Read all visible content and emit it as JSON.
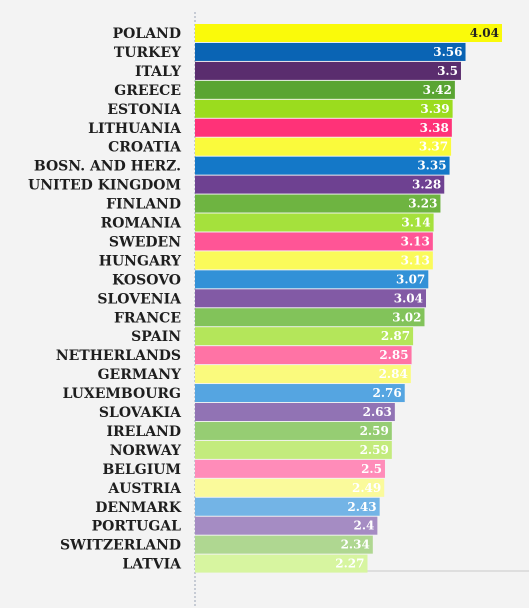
{
  "chart_data": {
    "type": "bar",
    "orientation": "horizontal",
    "categories": [
      "POLAND",
      "TURKEY",
      "ITALY",
      "GREECE",
      "ESTONIA",
      "LITHUANIA",
      "CROATIA",
      "BOSN. AND HERZ.",
      "UNITED KINGDOM",
      "FINLAND",
      "ROMANIA",
      "SWEDEN",
      "HUNGARY",
      "KOSOVO",
      "SLOVENIA",
      "FRANCE",
      "SPAIN",
      "NETHERLANDS",
      "GERMANY",
      "LUXEMBOURG",
      "SLOVAKIA",
      "IRELAND",
      "NORWAY",
      "BELGIUM",
      "AUSTRIA",
      "DENMARK",
      "PORTUGAL",
      "SWITZERLAND",
      "LATVIA"
    ],
    "values": [
      4.04,
      3.56,
      3.5,
      3.42,
      3.39,
      3.38,
      3.37,
      3.35,
      3.28,
      3.23,
      3.14,
      3.13,
      3.13,
      3.07,
      3.04,
      3.02,
      2.87,
      2.85,
      2.84,
      2.76,
      2.63,
      2.59,
      2.59,
      2.5,
      2.49,
      2.43,
      2.4,
      2.34,
      2.27
    ],
    "value_labels": [
      "4.04",
      "3.56",
      "3.5",
      "3.42",
      "3.39",
      "3.38",
      "3.37",
      "3.35",
      "3.28",
      "3.23",
      "3.14",
      "3.13",
      "3.13",
      "3.07",
      "3.04",
      "3.02",
      "2.87",
      "2.85",
      "2.84",
      "2.76",
      "2.63",
      "2.59",
      "2.59",
      "2.5",
      "2.49",
      "2.43",
      "2.4",
      "2.34",
      "2.27"
    ],
    "bar_colors": [
      "#fafa0a",
      "#0a64b4",
      "#5a2d6e",
      "#5aa532",
      "#9bdc1e",
      "#ff3278",
      "#fafa3c",
      "#1478c8",
      "#6e4191",
      "#6eb441",
      "#a5e13c",
      "#ff5596",
      "#fafa5a",
      "#3291d7",
      "#825aa5",
      "#82c35a",
      "#b4e65a",
      "#ff73a5",
      "#fafa7d",
      "#55a5e1",
      "#9173b4",
      "#96cd73",
      "#c3eb7d",
      "#ff8cb9",
      "#fafa9b",
      "#73b4e6",
      "#a58cc3",
      "#afd791",
      "#d7f5a0"
    ],
    "value_label_colors": [
      "#222222",
      "#ffffff",
      "#ffffff",
      "#ffffff",
      "#ffffff",
      "#ffffff",
      "#ffffff",
      "#ffffff",
      "#ffffff",
      "#ffffff",
      "#ffffff",
      "#ffffff",
      "#ffffff",
      "#ffffff",
      "#ffffff",
      "#ffffff",
      "#ffffff",
      "#ffffff",
      "#ffffff",
      "#ffffff",
      "#ffffff",
      "#ffffff",
      "#ffffff",
      "#ffffff",
      "#ffffff",
      "#ffffff",
      "#ffffff",
      "#ffffff",
      "#ffffff"
    ],
    "xlim": [
      0,
      4.04
    ],
    "grid": false,
    "legend": "none",
    "title": "",
    "xlabel": "",
    "ylabel": ""
  }
}
